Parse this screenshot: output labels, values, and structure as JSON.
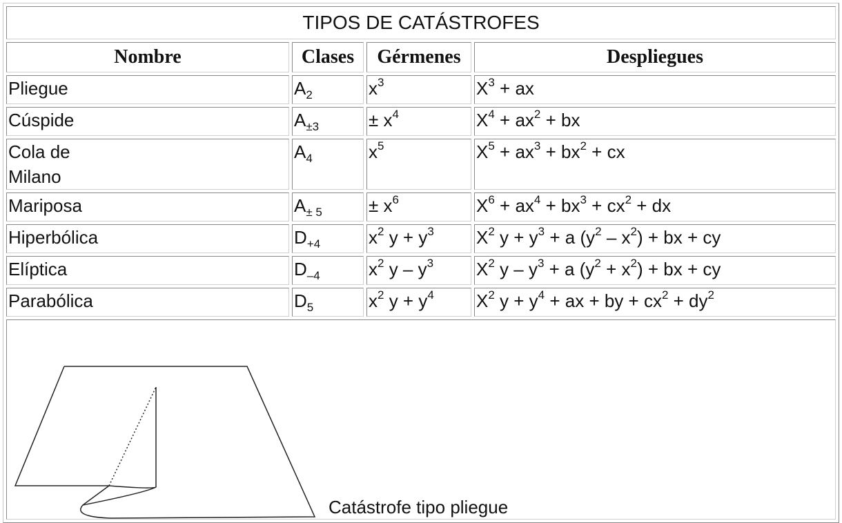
{
  "table": {
    "title": "TIPOS DE CATÁSTROFES",
    "header": [
      "Nombre",
      "Clases",
      "Gérmenes",
      "Despliegues"
    ],
    "rows": [
      {
        "nombre": [
          "Pliegue"
        ],
        "clases": [
          "A",
          {
            "sub": "2"
          }
        ],
        "germenes": [
          "x",
          {
            "sup": "3"
          }
        ],
        "despliegues": [
          "X",
          {
            "sup": "3"
          },
          " + ax"
        ]
      },
      {
        "nombre": [
          "Cúspide"
        ],
        "clases": [
          "A",
          {
            "sub": "±3"
          }
        ],
        "germenes": [
          "± x",
          {
            "sup": "4"
          }
        ],
        "despliegues": [
          "X",
          {
            "sup": "4"
          },
          " + ax",
          {
            "sup": "2"
          },
          " + bx"
        ]
      },
      {
        "nombre": [
          "Cola de",
          "Milano"
        ],
        "clases": [
          "A",
          {
            "sub": "4"
          }
        ],
        "germenes": [
          "x",
          {
            "sup": "5"
          }
        ],
        "despliegues": [
          "X",
          {
            "sup": "5"
          },
          " + ax",
          {
            "sup": "3"
          },
          " + bx",
          {
            "sup": "2"
          },
          " + cx"
        ]
      },
      {
        "nombre": [
          "Mariposa"
        ],
        "clases": [
          "A",
          {
            "sub": "± 5"
          }
        ],
        "germenes": [
          "± x",
          {
            "sup": "6"
          }
        ],
        "despliegues": [
          "X",
          {
            "sup": "6"
          },
          " + ax",
          {
            "sup": "4"
          },
          " + bx",
          {
            "sup": "3"
          },
          " + cx",
          {
            "sup": "2"
          },
          " + dx"
        ]
      },
      {
        "nombre": [
          "Hiperbólica"
        ],
        "clases": [
          "D",
          {
            "sub": "+4"
          }
        ],
        "germenes": [
          "x",
          {
            "sup": "2"
          },
          " y + y",
          {
            "sup": "3"
          }
        ],
        "despliegues": [
          "X",
          {
            "sup": "2"
          },
          " y + y",
          {
            "sup": "3"
          },
          " + a (y",
          {
            "sup": "2"
          },
          " – x",
          {
            "sup": "2"
          },
          ") + bx + cy"
        ]
      },
      {
        "nombre": [
          "Elíptica"
        ],
        "clases": [
          "D",
          {
            "sub": "–4"
          }
        ],
        "germenes": [
          "x",
          {
            "sup": "2"
          },
          " y – y",
          {
            "sup": "3"
          }
        ],
        "despliegues": [
          "X",
          {
            "sup": "2"
          },
          " y – y",
          {
            "sup": "3"
          },
          " + a (y",
          {
            "sup": "2"
          },
          " + x",
          {
            "sup": "2"
          },
          ") + bx + cy"
        ]
      },
      {
        "nombre": [
          "Parabólica"
        ],
        "clases": [
          "D",
          {
            "sub": "5"
          }
        ],
        "germenes": [
          "x",
          {
            "sup": "2"
          },
          " y + y",
          {
            "sup": "4"
          }
        ],
        "despliegues": [
          "X",
          {
            "sup": "2"
          },
          " y + y",
          {
            "sup": "4"
          },
          " + ax + by + cx",
          {
            "sup": "2"
          },
          " + dy",
          {
            "sup": "2"
          }
        ]
      }
    ],
    "figure": {
      "caption": "Catástrofe tipo pliegue"
    }
  }
}
